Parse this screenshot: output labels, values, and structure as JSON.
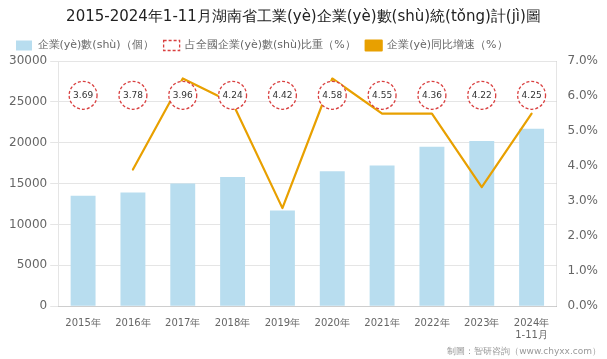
{
  "chart_data": {
    "type": "bar",
    "title": "2015-2024年1-11月湖南省工業(yè)企業(yè)數(shù)統(tǒng)計(jì)圖",
    "footer": "制圖：智研咨詢（www.chyxx.com）",
    "categories": [
      "2015年",
      "2016年",
      "2017年",
      "2018年",
      "2019年",
      "2020年",
      "2021年",
      "2022年",
      "2023年",
      "2024年\n1-11月"
    ],
    "series": [
      {
        "name": "企業(yè)數(shù)（個）",
        "type": "bar",
        "color": "#b8ddef",
        "values": [
          13500,
          13900,
          15000,
          15800,
          11700,
          16500,
          17200,
          19500,
          20200,
          21700
        ]
      },
      {
        "name": "占全國企業(yè)數(shù)比重（%）",
        "type": "scatter",
        "color": "#d94040",
        "marker": "circle",
        "line_style": "dashed",
        "data_labels": true,
        "level": 25800,
        "values": [
          3.69,
          3.78,
          3.96,
          4.24,
          4.42,
          4.58,
          4.55,
          4.36,
          4.22,
          4.25
        ]
      },
      {
        "name": "企業(yè)同比增速（%）",
        "type": "line",
        "color": "#e8a000",
        "axis": "y2",
        "values": [
          null,
          3.9,
          6.5,
          5.8,
          2.8,
          6.5,
          5.5,
          5.5,
          3.4,
          5.5
        ]
      }
    ],
    "ylim": [
      0,
      30000
    ],
    "yticks": [
      0,
      5000,
      10000,
      15000,
      20000,
      25000,
      30000
    ],
    "y2lim": [
      0.0,
      7.0
    ],
    "y2ticks": [
      {
        "value": 0.0,
        "label": "0.0%"
      },
      {
        "value": 1.0,
        "label": "1.0%"
      },
      {
        "value": 2.0,
        "label": "2.0%"
      },
      {
        "value": 3.0,
        "label": "3.0%"
      },
      {
        "value": 4.0,
        "label": "4.0%"
      },
      {
        "value": 5.0,
        "label": "5.0%"
      },
      {
        "value": 6.0,
        "label": "6.0%"
      },
      {
        "value": 7.0,
        "label": "7.0%"
      }
    ],
    "grid": true,
    "legend": "top"
  }
}
